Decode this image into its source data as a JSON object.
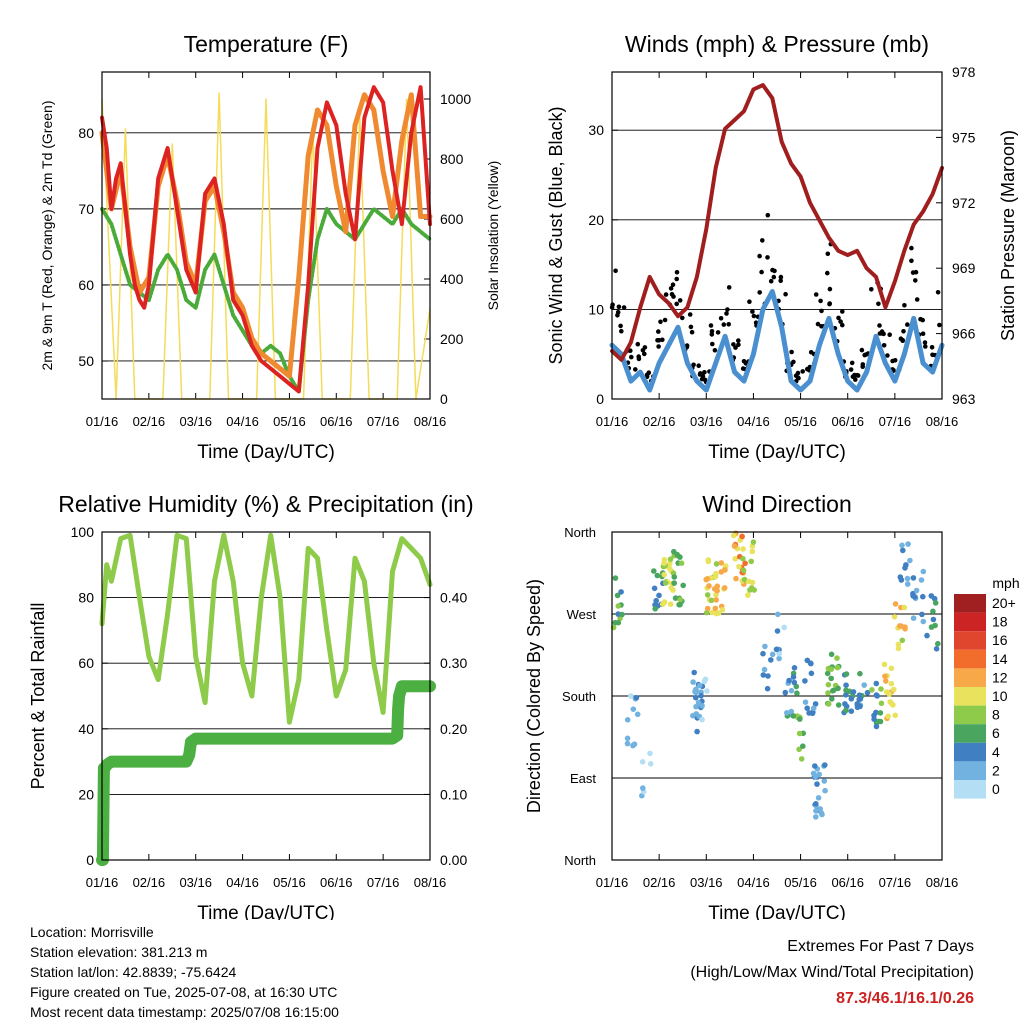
{
  "chart_data": [
    {
      "type": "line",
      "title": "Temperature (F)",
      "xlabel": "Time (Day/UTC)",
      "ylabel": "2m & 9m T (Red, Orange) & 2m Td (Green)",
      "ylabel_right": "Solar Insolation (Yellow)",
      "x_ticks": [
        "01/16",
        "02/16",
        "03/16",
        "04/16",
        "05/16",
        "06/16",
        "07/16",
        "08/16"
      ],
      "ylim": [
        45,
        88
      ],
      "y_ticks": [
        50,
        60,
        70,
        80
      ],
      "y2lim": [
        0,
        1090
      ],
      "y2_ticks": [
        0,
        200,
        400,
        600,
        800,
        1000
      ],
      "grid": true,
      "colors": {
        "t2m": "#dd2222",
        "t9m": "#f08a30",
        "td2m": "#4aaa3a",
        "solar": "#f4dc5a"
      },
      "series": [
        {
          "key": "t2m",
          "axis": "left",
          "x": [
            0,
            0.1,
            0.2,
            0.3,
            0.4,
            0.5,
            0.6,
            0.7,
            0.8,
            0.9,
            1.0,
            1.2,
            1.4,
            1.6,
            1.8,
            2.0,
            2.2,
            2.4,
            2.6,
            2.8,
            3.0,
            3.2,
            3.4,
            3.6,
            3.8,
            4.0,
            4.2,
            4.4,
            4.6,
            4.8,
            5.0,
            5.2,
            5.4,
            5.6,
            5.8,
            6.0,
            6.2,
            6.4,
            6.6,
            6.8,
            7.0
          ],
          "values": [
            82,
            78,
            70,
            74,
            76,
            70,
            64,
            60,
            58,
            57,
            60,
            74,
            78,
            70,
            62,
            59,
            72,
            74,
            68,
            58,
            56,
            52,
            50,
            49,
            48,
            47,
            46,
            60,
            78,
            84,
            81,
            72,
            66,
            82,
            86,
            84,
            75,
            68,
            80,
            86,
            68
          ]
        },
        {
          "key": "t9m",
          "axis": "left",
          "x": [
            0,
            0.2,
            0.4,
            0.6,
            0.8,
            1.0,
            1.2,
            1.4,
            1.6,
            1.8,
            2.0,
            2.2,
            2.4,
            2.6,
            2.8,
            3.0,
            3.2,
            3.4,
            3.6,
            3.8,
            4.0,
            4.2,
            4.4,
            4.6,
            4.8,
            5.0,
            5.2,
            5.4,
            5.6,
            5.8,
            6.0,
            6.2,
            6.4,
            6.6,
            6.8,
            7.0
          ],
          "values": [
            80,
            70,
            75,
            65,
            59,
            61,
            73,
            77,
            71,
            63,
            60,
            71,
            73,
            67,
            59,
            57,
            53,
            51,
            50,
            49,
            48,
            61,
            77,
            83,
            81,
            73,
            67,
            81,
            85,
            83,
            75,
            69,
            79,
            85,
            69,
            69
          ]
        },
        {
          "key": "td2m",
          "axis": "left",
          "x": [
            0,
            0.2,
            0.4,
            0.6,
            0.8,
            1.0,
            1.2,
            1.4,
            1.6,
            1.8,
            2.0,
            2.2,
            2.4,
            2.6,
            2.8,
            3.0,
            3.2,
            3.4,
            3.6,
            3.8,
            4.0,
            4.2,
            4.4,
            4.6,
            4.8,
            5.0,
            5.2,
            5.4,
            5.6,
            5.8,
            6.0,
            6.2,
            6.4,
            6.6,
            6.8,
            7.0
          ],
          "values": [
            70,
            68,
            64,
            60,
            59,
            58,
            62,
            64,
            62,
            58,
            57,
            62,
            64,
            60,
            56,
            54,
            52,
            51,
            52,
            51,
            48,
            46,
            58,
            66,
            70,
            68,
            67,
            66,
            68,
            70,
            69,
            68,
            70,
            68,
            67,
            66
          ]
        },
        {
          "key": "solar",
          "axis": "right",
          "x": [
            0,
            0.3,
            0.5,
            0.7,
            1.3,
            1.5,
            1.7,
            2.3,
            2.5,
            2.7,
            3.3,
            3.5,
            3.7,
            4.3,
            4.5,
            4.7,
            5.3,
            5.5,
            5.7,
            6.3,
            6.5,
            6.7,
            7.0
          ],
          "values": [
            1000,
            0,
            900,
            0,
            0,
            850,
            0,
            0,
            1020,
            0,
            0,
            1000,
            0,
            0,
            900,
            0,
            0,
            950,
            0,
            0,
            1000,
            0,
            300
          ]
        }
      ]
    },
    {
      "type": "line",
      "title": "Winds (mph) & Pressure (mb)",
      "xlabel": "Time (Day/UTC)",
      "ylabel": "Sonic Wind & Gust (Blue, Black)",
      "ylabel_right": "Station Pressure (Maroon)",
      "x_ticks": [
        "01/16",
        "02/16",
        "03/16",
        "04/16",
        "05/16",
        "06/16",
        "07/16",
        "08/16"
      ],
      "ylim": [
        0,
        36.5
      ],
      "y_ticks": [
        0,
        10,
        20,
        30
      ],
      "y2lim": [
        963,
        978
      ],
      "y2_ticks": [
        963,
        966,
        969,
        972,
        975,
        978
      ],
      "grid": true,
      "colors": {
        "wind": "#4a90d0",
        "gust": "#000000",
        "pressure": "#a01e1e"
      },
      "series": [
        {
          "key": "wind",
          "axis": "left",
          "x": [
            0,
            0.2,
            0.4,
            0.6,
            0.8,
            1.0,
            1.2,
            1.4,
            1.6,
            1.8,
            2.0,
            2.2,
            2.4,
            2.6,
            2.8,
            3.0,
            3.2,
            3.4,
            3.6,
            3.8,
            4.0,
            4.2,
            4.4,
            4.6,
            4.8,
            5.0,
            5.2,
            5.4,
            5.6,
            5.8,
            6.0,
            6.2,
            6.4,
            6.6,
            6.8,
            7.0
          ],
          "values": [
            6,
            5,
            2,
            3,
            1,
            4,
            6,
            8,
            4,
            2,
            1,
            4,
            7,
            3,
            2,
            5,
            10,
            12,
            8,
            2,
            1,
            2,
            6,
            9,
            5,
            2,
            1,
            3,
            7,
            4,
            2,
            5,
            9,
            4,
            3,
            6
          ]
        },
        {
          "key": "gust",
          "axis": "left",
          "x": [
            0,
            0.2,
            0.4,
            0.6,
            0.8,
            1.0,
            1.2,
            1.4,
            1.6,
            1.8,
            2.0,
            2.2,
            2.4,
            2.6,
            2.8,
            3.0,
            3.2,
            3.4,
            3.6,
            3.8,
            4.0,
            4.2,
            4.4,
            4.6,
            4.8,
            5.0,
            5.2,
            5.4,
            5.6,
            5.8,
            6.0,
            6.2,
            6.4,
            6.6,
            6.8,
            7.0
          ],
          "values": [
            16,
            11,
            5,
            7,
            3,
            8,
            12,
            15,
            9,
            4,
            3,
            9,
            13,
            7,
            4,
            10,
            17,
            19,
            13,
            5,
            3,
            5,
            11,
            16,
            10,
            4,
            3,
            6,
            12,
            8,
            5,
            10,
            17,
            9,
            6,
            11
          ]
        },
        {
          "key": "pressure",
          "axis": "right",
          "x": [
            0,
            0.2,
            0.4,
            0.6,
            0.8,
            1.0,
            1.2,
            1.4,
            1.6,
            1.8,
            2.0,
            2.2,
            2.4,
            2.6,
            2.8,
            3.0,
            3.2,
            3.4,
            3.6,
            3.8,
            4.0,
            4.2,
            4.4,
            4.6,
            4.8,
            5.0,
            5.2,
            5.4,
            5.6,
            5.8,
            6.0,
            6.2,
            6.4,
            6.6,
            6.8,
            7.0
          ],
          "values": [
            965.2,
            964.8,
            965.6,
            967.2,
            968.6,
            967.8,
            967.4,
            966.8,
            967.2,
            968.6,
            970.8,
            973.6,
            975.4,
            975.8,
            976.2,
            977.2,
            977.4,
            976.8,
            974.8,
            973.8,
            973.2,
            972.0,
            971.2,
            970.4,
            969.8,
            969.6,
            969.8,
            969.0,
            968.6,
            967.2,
            968.4,
            969.8,
            971.0,
            971.6,
            972.4,
            973.6
          ]
        }
      ]
    },
    {
      "type": "line",
      "title": "Relative Humidity (%) & Precipitation (in)",
      "xlabel": "Time (Day/UTC)",
      "ylabel": "Percent & Total Rainfall",
      "x_ticks": [
        "01/16",
        "02/16",
        "03/16",
        "04/16",
        "05/16",
        "06/16",
        "07/16",
        "08/16"
      ],
      "ylim": [
        0,
        100
      ],
      "y_ticks": [
        0,
        20,
        40,
        60,
        80,
        100
      ],
      "y2lim": [
        0,
        0.5
      ],
      "y2_ticks": [
        "0.00",
        "0.10",
        "0.20",
        "0.30",
        "0.40"
      ],
      "grid": true,
      "colors": {
        "rh": "#8fcb4a",
        "precip": "#4caf42"
      },
      "series": [
        {
          "key": "rh",
          "axis": "left",
          "x": [
            0,
            0.1,
            0.2,
            0.4,
            0.6,
            0.8,
            1.0,
            1.2,
            1.4,
            1.6,
            1.8,
            2.0,
            2.2,
            2.4,
            2.6,
            2.8,
            3.0,
            3.2,
            3.4,
            3.6,
            3.8,
            4.0,
            4.2,
            4.4,
            4.6,
            4.8,
            5.0,
            5.2,
            5.4,
            5.6,
            5.8,
            6.0,
            6.2,
            6.4,
            6.6,
            6.8,
            7.0
          ],
          "values": [
            72,
            90,
            85,
            98,
            99,
            80,
            62,
            55,
            75,
            99,
            98,
            62,
            48,
            85,
            99,
            85,
            60,
            50,
            80,
            99,
            80,
            42,
            55,
            95,
            92,
            70,
            50,
            58,
            92,
            85,
            60,
            45,
            88,
            98,
            95,
            92,
            84
          ]
        },
        {
          "key": "precip",
          "axis": "right",
          "x": [
            0,
            0.02,
            0.04,
            0.06,
            0.1,
            0.2,
            1.0,
            1.8,
            1.86,
            1.9,
            2.0,
            3.0,
            4.0,
            5.0,
            6.0,
            6.2,
            6.3,
            6.32,
            6.34,
            6.4,
            7.0
          ],
          "values": [
            0.0,
            0.0,
            0.14,
            0.14,
            0.145,
            0.15,
            0.15,
            0.15,
            0.16,
            0.18,
            0.185,
            0.185,
            0.185,
            0.185,
            0.185,
            0.185,
            0.19,
            0.23,
            0.25,
            0.265,
            0.265
          ]
        }
      ]
    },
    {
      "type": "scatter",
      "title": "Wind Direction",
      "xlabel": "Time (Day/UTC)",
      "ylabel": "Direction (Colored By Speed)",
      "x_ticks": [
        "01/16",
        "02/16",
        "03/16",
        "04/16",
        "05/16",
        "06/16",
        "07/16",
        "08/16"
      ],
      "y_tick_labels": [
        "North",
        "East",
        "South",
        "West",
        "North"
      ],
      "ylim": [
        0,
        360
      ],
      "grid": true,
      "colorbar": {
        "title": "mph",
        "labels": [
          "20+",
          "18",
          "16",
          "14",
          "12",
          "10",
          "8",
          "6",
          "4",
          "2",
          "0"
        ],
        "colors": [
          "#a01f20",
          "#cc2424",
          "#e0452e",
          "#f26c2c",
          "#f7a94a",
          "#e8e25c",
          "#8fcb4a",
          "#4aa55e",
          "#3f7fc2",
          "#72b2e0",
          "#b4def4"
        ]
      },
      "clusters": [
        {
          "x": 0.1,
          "dir": 285,
          "speed": 6,
          "n": 14
        },
        {
          "x": 0.45,
          "dir": 150,
          "speed": 2,
          "n": 10
        },
        {
          "x": 0.7,
          "dir": 90,
          "speed": 1,
          "n": 6
        },
        {
          "x": 1.0,
          "dir": 300,
          "speed": 5,
          "n": 12
        },
        {
          "x": 1.2,
          "dir": 305,
          "speed": 9,
          "n": 20
        },
        {
          "x": 1.4,
          "dir": 310,
          "speed": 7,
          "n": 16
        },
        {
          "x": 1.8,
          "dir": 180,
          "speed": 3,
          "n": 16
        },
        {
          "x": 1.9,
          "dir": 170,
          "speed": 2,
          "n": 10
        },
        {
          "x": 2.1,
          "dir": 300,
          "speed": 10,
          "n": 18
        },
        {
          "x": 2.3,
          "dir": 300,
          "speed": 11,
          "n": 16
        },
        {
          "x": 2.7,
          "dir": 330,
          "speed": 12,
          "n": 20
        },
        {
          "x": 2.9,
          "dir": 320,
          "speed": 9,
          "n": 14
        },
        {
          "x": 3.3,
          "dir": 210,
          "speed": 3,
          "n": 8
        },
        {
          "x": 3.6,
          "dir": 250,
          "speed": 2,
          "n": 8
        },
        {
          "x": 3.8,
          "dir": 185,
          "speed": 4,
          "n": 14
        },
        {
          "x": 3.95,
          "dir": 140,
          "speed": 7,
          "n": 10
        },
        {
          "x": 4.2,
          "dir": 190,
          "speed": 3,
          "n": 12
        },
        {
          "x": 4.4,
          "dir": 75,
          "speed": 3,
          "n": 22
        },
        {
          "x": 4.7,
          "dir": 200,
          "speed": 7,
          "n": 20
        },
        {
          "x": 5.0,
          "dir": 185,
          "speed": 5,
          "n": 14
        },
        {
          "x": 5.3,
          "dir": 175,
          "speed": 4,
          "n": 12
        },
        {
          "x": 5.6,
          "dir": 175,
          "speed": 6,
          "n": 14
        },
        {
          "x": 5.9,
          "dir": 185,
          "speed": 11,
          "n": 16
        },
        {
          "x": 6.1,
          "dir": 255,
          "speed": 10,
          "n": 12
        },
        {
          "x": 6.2,
          "dir": 330,
          "speed": 3,
          "n": 10
        },
        {
          "x": 6.5,
          "dir": 290,
          "speed": 3,
          "n": 12
        },
        {
          "x": 6.8,
          "dir": 260,
          "speed": 5,
          "n": 10
        }
      ]
    }
  ],
  "info": {
    "location": "Location: Morrisville",
    "elevation": "Station elevation: 381.213 m",
    "latlon": "Station lat/lon: 42.8839; -75.6424",
    "created": "Figure created on Tue, 2025-07-08, at 16:30 UTC",
    "timestamp": "Most recent data timestamp: 2025/07/08 16:15:00"
  },
  "extremes": {
    "title": "Extremes For Past 7 Days",
    "subtitle": "(High/Low/Max Wind/Total Precipitation)",
    "values": "87.3/46.1/16.1/0.26"
  }
}
